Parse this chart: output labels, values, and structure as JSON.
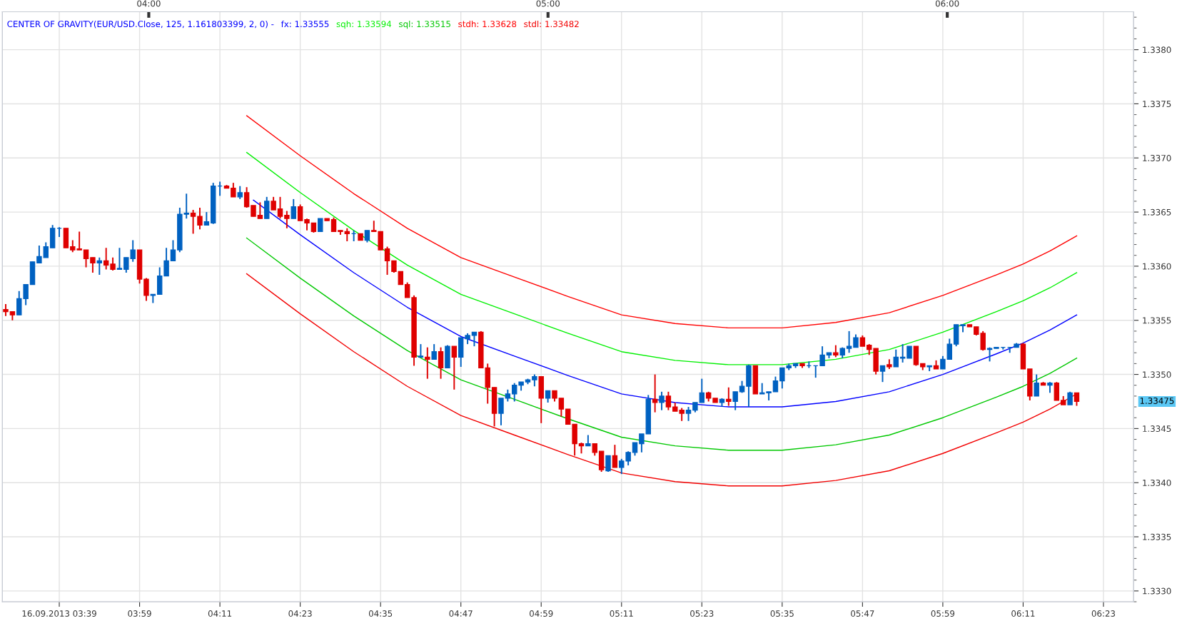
{
  "chart_data": {
    "type": "candlestick",
    "title": "CENTER OF GRAVITY(EUR/USD.Close, 125, 1.161803399, 2, 0) -",
    "categories": [
      null,
      null,
      null,
      null,
      null,
      null,
      null,
      null,
      "16.09.2013 03:39",
      null,
      null,
      null,
      null,
      null,
      null,
      null,
      null,
      null,
      null,
      null,
      "03:59",
      null,
      null,
      null,
      null,
      null,
      null,
      null,
      null,
      null,
      null,
      null,
      "04:11",
      null,
      null,
      null,
      null,
      null,
      null,
      null,
      null,
      null,
      null,
      null,
      "04:23",
      null,
      null,
      null,
      null,
      null,
      null,
      null,
      null,
      null,
      null,
      null,
      "04:35",
      null,
      null,
      null,
      null,
      null,
      null,
      null,
      null,
      null,
      null,
      null,
      "04:47",
      null,
      null,
      null,
      null,
      null,
      null,
      null,
      null,
      null,
      null,
      null,
      "04:59",
      null,
      null,
      null,
      null,
      null,
      null,
      null,
      null,
      null,
      null,
      null,
      "05:11",
      null,
      null,
      null,
      null,
      null,
      null,
      null,
      null,
      null,
      null,
      null,
      "05:23",
      null,
      null,
      null,
      null,
      null,
      null,
      null,
      null,
      null,
      null,
      null,
      "05:35",
      null,
      null,
      null,
      null,
      null,
      null,
      null,
      null,
      null,
      null,
      null,
      "05:47",
      null,
      null,
      null,
      null,
      null,
      null,
      null,
      null,
      null,
      null,
      null,
      "05:59",
      null,
      null,
      null,
      null,
      null,
      null,
      null,
      null,
      null,
      null,
      null,
      "06:11",
      null,
      null,
      null,
      null,
      null,
      null,
      null,
      null,
      null,
      null,
      null,
      "06:23",
      null,
      null,
      null,
      null
    ],
    "ohlc": [
      [
        1.3356,
        1.33565,
        1.33554,
        1.33558
      ],
      [
        1.33558,
        1.33558,
        1.3355,
        1.33555
      ],
      [
        1.33555,
        1.33577,
        1.33555,
        1.3357
      ],
      [
        1.3357,
        1.33583,
        1.33564,
        1.33583
      ],
      [
        1.33583,
        1.33604,
        1.33583,
        1.33604
      ],
      [
        1.33603,
        1.33619,
        1.33603,
        1.33609
      ],
      [
        1.33608,
        1.33622,
        1.33608,
        1.33618
      ],
      [
        1.33617,
        1.33638,
        1.33617,
        1.33635
      ],
      [
        1.33635,
        1.33636,
        1.33627,
        1.33635
      ],
      [
        1.33635,
        1.33635,
        1.33617,
        1.33617
      ],
      [
        1.33618,
        1.33624,
        1.33613,
        1.33615
      ],
      [
        1.33616,
        1.33632,
        1.33615,
        1.33615
      ],
      [
        1.33615,
        1.33615,
        1.33599,
        1.33607
      ],
      [
        1.33608,
        1.33608,
        1.33594,
        1.33603
      ],
      [
        1.33603,
        1.33608,
        1.33592,
        1.33605
      ],
      [
        1.33605,
        1.33617,
        1.33597,
        1.33601
      ],
      [
        1.33602,
        1.33608,
        1.33596,
        1.33597
      ],
      [
        1.33597,
        1.33617,
        1.33597,
        1.33598
      ],
      [
        1.33597,
        1.33608,
        1.33594,
        1.33608
      ],
      [
        1.33607,
        1.33624,
        1.33604,
        1.33615
      ],
      [
        1.33615,
        1.33615,
        1.33584,
        1.33588
      ],
      [
        1.33588,
        1.33589,
        1.33568,
        1.33573
      ],
      [
        1.33573,
        1.33574,
        1.33566,
        1.33574
      ],
      [
        1.33574,
        1.33599,
        1.33574,
        1.33591
      ],
      [
        1.33591,
        1.33617,
        1.33591,
        1.33605
      ],
      [
        1.33605,
        1.33624,
        1.33605,
        1.33615
      ],
      [
        1.33615,
        1.33654,
        1.33613,
        1.33648
      ],
      [
        1.33648,
        1.33667,
        1.33644,
        1.33649
      ],
      [
        1.33649,
        1.33652,
        1.3363,
        1.33646
      ],
      [
        1.33646,
        1.33654,
        1.33634,
        1.33638
      ],
      [
        1.33638,
        1.3365,
        1.33638,
        1.33641
      ],
      [
        1.3364,
        1.33677,
        1.33639,
        1.33674
      ],
      [
        1.33674,
        1.33678,
        1.33665,
        1.33674
      ],
      [
        1.33674,
        1.33675,
        1.33672,
        1.33672
      ],
      [
        1.33672,
        1.33677,
        1.33664,
        1.33664
      ],
      [
        1.33664,
        1.33674,
        1.33662,
        1.33668
      ],
      [
        1.33668,
        1.33673,
        1.33654,
        1.33655
      ],
      [
        1.33656,
        1.33656,
        1.33646,
        1.33646
      ],
      [
        1.33647,
        1.33659,
        1.33644,
        1.33644
      ],
      [
        1.33644,
        1.33664,
        1.33644,
        1.3366
      ],
      [
        1.3366,
        1.33664,
        1.33652,
        1.33652
      ],
      [
        1.33653,
        1.33664,
        1.33644,
        1.33646
      ],
      [
        1.33647,
        1.33651,
        1.33635,
        1.33644
      ],
      [
        1.33644,
        1.33662,
        1.33644,
        1.33655
      ],
      [
        1.33655,
        1.33657,
        1.33642,
        1.33642
      ],
      [
        1.33643,
        1.33644,
        1.33633,
        1.3364
      ],
      [
        1.3364,
        1.3364,
        1.33631,
        1.33632
      ],
      [
        1.33632,
        1.33644,
        1.33632,
        1.33644
      ],
      [
        1.33644,
        1.33644,
        1.33642,
        1.33642
      ],
      [
        1.33643,
        1.33645,
        1.33632,
        1.33632
      ],
      [
        1.33633,
        1.33633,
        1.33629,
        1.33632
      ],
      [
        1.33632,
        1.33635,
        1.33623,
        1.3363
      ],
      [
        1.3363,
        1.33633,
        1.33623,
        1.3363
      ],
      [
        1.3363,
        1.3363,
        1.33624,
        1.33624
      ],
      [
        1.33624,
        1.33633,
        1.33622,
        1.33633
      ],
      [
        1.33633,
        1.33642,
        1.33632,
        1.33632
      ],
      [
        1.33632,
        1.33632,
        1.33615,
        1.33615
      ],
      [
        1.33616,
        1.33618,
        1.33592,
        1.33605
      ],
      [
        1.33605,
        1.33605,
        1.33594,
        1.33595
      ],
      [
        1.33595,
        1.33595,
        1.33583,
        1.33583
      ],
      [
        1.33583,
        1.33585,
        1.33571,
        1.33571
      ],
      [
        1.33571,
        1.33573,
        1.33508,
        1.33516
      ],
      [
        1.33516,
        1.33528,
        1.33516,
        1.33517
      ],
      [
        1.33516,
        1.33525,
        1.33496,
        1.33514
      ],
      [
        1.33514,
        1.33528,
        1.33514,
        1.33521
      ],
      [
        1.33521,
        1.33525,
        1.33496,
        1.33506
      ],
      [
        1.33506,
        1.33527,
        1.33506,
        1.33526
      ],
      [
        1.33526,
        1.33526,
        1.33486,
        1.33516
      ],
      [
        1.33516,
        1.33534,
        1.33507,
        1.33534
      ],
      [
        1.33533,
        1.33538,
        1.33528,
        1.33536
      ],
      [
        1.33536,
        1.33539,
        1.33526,
        1.33539
      ],
      [
        1.33539,
        1.3354,
        1.33506,
        1.33506
      ],
      [
        1.33506,
        1.3351,
        1.33473,
        1.33488
      ],
      [
        1.33488,
        1.33488,
        1.33452,
        1.33464
      ],
      [
        1.33464,
        1.33478,
        1.33453,
        1.33478
      ],
      [
        1.33478,
        1.33486,
        1.33475,
        1.33482
      ],
      [
        1.33482,
        1.33492,
        1.33475,
        1.3349
      ],
      [
        1.3349,
        1.33493,
        1.33485,
        1.33493
      ],
      [
        1.33493,
        1.33496,
        1.33491,
        1.33495
      ],
      [
        1.33495,
        1.335,
        1.33489,
        1.33498
      ],
      [
        1.33498,
        1.33498,
        1.33455,
        1.33478
      ],
      [
        1.33478,
        1.33485,
        1.33474,
        1.33485
      ],
      [
        1.33485,
        1.33485,
        1.33475,
        1.33478
      ],
      [
        1.33478,
        1.33478,
        1.33461,
        1.33468
      ],
      [
        1.33468,
        1.33468,
        1.33454,
        1.33454
      ],
      [
        1.33454,
        1.33454,
        1.33425,
        1.33436
      ],
      [
        1.33436,
        1.33437,
        1.33427,
        1.33434
      ],
      [
        1.33434,
        1.33444,
        1.33434,
        1.33436
      ],
      [
        1.33436,
        1.33436,
        1.33425,
        1.33428
      ],
      [
        1.33429,
        1.33429,
        1.3341,
        1.33412
      ],
      [
        1.33411,
        1.33425,
        1.3341,
        1.33425
      ],
      [
        1.33425,
        1.33435,
        1.33414,
        1.33414
      ],
      [
        1.33414,
        1.33422,
        1.33408,
        1.3342
      ],
      [
        1.3342,
        1.33429,
        1.33416,
        1.33428
      ],
      [
        1.33428,
        1.33437,
        1.33425,
        1.33437
      ],
      [
        1.33436,
        1.33445,
        1.33428,
        1.33445
      ],
      [
        1.33445,
        1.33481,
        1.33445,
        1.33477
      ],
      [
        1.33477,
        1.335,
        1.33465,
        1.33474
      ],
      [
        1.33474,
        1.33484,
        1.33467,
        1.3348
      ],
      [
        1.3348,
        1.33484,
        1.33467,
        1.3347
      ],
      [
        1.3347,
        1.33474,
        1.33466,
        1.33466
      ],
      [
        1.33467,
        1.33469,
        1.33457,
        1.33464
      ],
      [
        1.33464,
        1.3347,
        1.33457,
        1.33467
      ],
      [
        1.33467,
        1.33474,
        1.33465,
        1.33474
      ],
      [
        1.33474,
        1.33496,
        1.33474,
        1.33483
      ],
      [
        1.33483,
        1.33484,
        1.33475,
        1.33478
      ],
      [
        1.33478,
        1.33478,
        1.33474,
        1.33474
      ],
      [
        1.33474,
        1.33478,
        1.3347,
        1.33477
      ],
      [
        1.33477,
        1.33488,
        1.33471,
        1.33475
      ],
      [
        1.33475,
        1.33484,
        1.33467,
        1.33484
      ],
      [
        1.33484,
        1.33494,
        1.33483,
        1.33489
      ],
      [
        1.33489,
        1.33509,
        1.3347,
        1.33508
      ],
      [
        1.33508,
        1.33508,
        1.33482,
        1.33482
      ],
      [
        1.33482,
        1.33492,
        1.33482,
        1.33483
      ],
      [
        1.33483,
        1.33484,
        1.33476,
        1.33484
      ],
      [
        1.33484,
        1.33498,
        1.33484,
        1.33494
      ],
      [
        1.33494,
        1.33506,
        1.33487,
        1.33506
      ],
      [
        1.33506,
        1.3351,
        1.33504,
        1.33508
      ],
      [
        1.33508,
        1.3351,
        1.33506,
        1.3351
      ],
      [
        1.3351,
        1.3351,
        1.33506,
        1.33508
      ],
      [
        1.33508,
        1.33512,
        1.33506,
        1.33508
      ],
      [
        1.33508,
        1.33508,
        1.33497,
        1.33508
      ],
      [
        1.33508,
        1.33526,
        1.33508,
        1.33518
      ],
      [
        1.33518,
        1.3352,
        1.33515,
        1.3352
      ],
      [
        1.3352,
        1.33527,
        1.33516,
        1.33518
      ],
      [
        1.33518,
        1.33525,
        1.33515,
        1.33524
      ],
      [
        1.33524,
        1.3354,
        1.3352,
        1.33526
      ],
      [
        1.33525,
        1.33537,
        1.33525,
        1.33534
      ],
      [
        1.33534,
        1.33536,
        1.33526,
        1.33526
      ],
      [
        1.33527,
        1.33528,
        1.33518,
        1.33523
      ],
      [
        1.33524,
        1.33524,
        1.335,
        1.33503
      ],
      [
        1.33503,
        1.33508,
        1.33493,
        1.33508
      ],
      [
        1.33509,
        1.33514,
        1.33505,
        1.33507
      ],
      [
        1.33507,
        1.33523,
        1.33507,
        1.33516
      ],
      [
        1.33515,
        1.33528,
        1.33511,
        1.33516
      ],
      [
        1.33515,
        1.33526,
        1.33515,
        1.33526
      ],
      [
        1.33526,
        1.33526,
        1.33508,
        1.33509
      ],
      [
        1.3351,
        1.3351,
        1.33504,
        1.33507
      ],
      [
        1.33507,
        1.33508,
        1.33503,
        1.33508
      ],
      [
        1.33508,
        1.33513,
        1.33505,
        1.33505
      ],
      [
        1.33505,
        1.33517,
        1.33505,
        1.33514
      ],
      [
        1.33514,
        1.33533,
        1.33514,
        1.33528
      ],
      [
        1.33528,
        1.33546,
        1.33526,
        1.33546
      ],
      [
        1.33545,
        1.33546,
        1.33539,
        1.33546
      ],
      [
        1.33546,
        1.33546,
        1.33544,
        1.33544
      ],
      [
        1.33544,
        1.33544,
        1.33536,
        1.33537
      ],
      [
        1.33538,
        1.3354,
        1.33522,
        1.33523
      ],
      [
        1.33523,
        1.33525,
        1.33512,
        1.33524
      ],
      [
        1.33524,
        1.33525,
        1.33524,
        1.33525
      ],
      [
        1.33525,
        1.33525,
        1.33523,
        1.33525
      ],
      [
        1.33525,
        1.33525,
        1.3352,
        1.33525
      ],
      [
        1.33525,
        1.33529,
        1.33525,
        1.33528
      ],
      [
        1.33528,
        1.33529,
        1.33505,
        1.33505
      ],
      [
        1.33505,
        1.33505,
        1.33476,
        1.3348
      ],
      [
        1.3348,
        1.335,
        1.3348,
        1.33492
      ],
      [
        1.33492,
        1.33493,
        1.3349,
        1.3349
      ],
      [
        1.3349,
        1.33493,
        1.33483,
        1.33492
      ],
      [
        1.33492,
        1.33493,
        1.33476,
        1.33476
      ],
      [
        1.33476,
        1.3348,
        1.33472,
        1.33472
      ],
      [
        1.33472,
        1.33484,
        1.33472,
        1.33483
      ],
      [
        1.33483,
        1.33483,
        1.33471,
        1.33475
      ],
      null,
      null,
      null,
      null,
      null,
      null,
      null,
      null
    ],
    "colors": [
      "#df0000",
      "#df0000",
      "#0061c1",
      "#0061c1",
      "#0061c1",
      "#0061c1",
      "#0061c1",
      "#0061c1",
      "#0061c1",
      "#df0000",
      "#df0000",
      "#df0000",
      "#df0000",
      "#df0000",
      "#0061c1",
      "#df0000",
      "#df0000",
      "#0061c1",
      "#0061c1",
      "#0061c1",
      "#df0000",
      "#df0000",
      "#0061c1",
      "#0061c1",
      "#0061c1",
      "#0061c1",
      "#0061c1",
      "#0061c1",
      "#df0000",
      "#df0000",
      "#0061c1",
      "#0061c1",
      "#0061c1",
      "#df0000",
      "#df0000",
      "#0061c1",
      "#df0000",
      "#df0000",
      "#df0000",
      "#0061c1",
      "#df0000",
      "#df0000",
      "#df0000",
      "#0061c1",
      "#df0000",
      "#df0000",
      "#df0000",
      "#0061c1",
      "#df0000",
      "#df0000",
      "#df0000",
      "#df0000",
      "#0061c1",
      "#df0000",
      "#0061c1",
      "#df0000",
      "#df0000",
      "#df0000",
      "#df0000",
      "#df0000",
      "#df0000",
      "#df0000",
      "#0061c1",
      "#df0000",
      "#0061c1",
      "#df0000",
      "#0061c1",
      "#df0000",
      "#0061c1",
      "#0061c1",
      "#0061c1",
      "#df0000",
      "#df0000",
      "#df0000",
      "#0061c1",
      "#0061c1",
      "#0061c1",
      "#0061c1",
      "#0061c1",
      "#0061c1",
      "#df0000",
      "#0061c1",
      "#df0000",
      "#df0000",
      "#df0000",
      "#df0000",
      "#df0000",
      "#0061c1",
      "#df0000",
      "#df0000",
      "#0061c1",
      "#df0000",
      "#0061c1",
      "#0061c1",
      "#0061c1",
      "#0061c1",
      "#0061c1",
      "#df0000",
      "#0061c1",
      "#df0000",
      "#df0000",
      "#df0000",
      "#0061c1",
      "#0061c1",
      "#0061c1",
      "#df0000",
      "#df0000",
      "#0061c1",
      "#df0000",
      "#0061c1",
      "#0061c1",
      "#0061c1",
      "#df0000",
      "#0061c1",
      "#0061c1",
      "#0061c1",
      "#0061c1",
      "#0061c1",
      "#0061c1",
      "#df0000",
      "#0061c1",
      "#0061c1",
      "#0061c1",
      "#0061c1",
      "#df0000",
      "#0061c1",
      "#0061c1",
      "#0061c1",
      "#df0000",
      "#df0000",
      "#df0000",
      "#0061c1",
      "#df0000",
      "#0061c1",
      "#0061c1",
      "#0061c1",
      "#df0000",
      "#df0000",
      "#0061c1",
      "#df0000",
      "#0061c1",
      "#0061c1",
      "#0061c1",
      "#0061c1",
      "#df0000",
      "#df0000",
      "#df0000",
      "#0061c1",
      "#0061c1",
      "#0061c1",
      "#0061c1",
      "#0061c1",
      "#df0000",
      "#df0000",
      "#0061c1",
      "#df0000",
      "#0061c1",
      "#df0000",
      "#df0000",
      "#0061c1",
      "#df0000",
      null,
      null,
      null,
      null,
      null,
      null,
      null,
      null
    ],
    "series": [
      {
        "type": "line",
        "name": "fx: 1.33555",
        "color": "#0000ff",
        "values": [
          null,
          null,
          null,
          null,
          null,
          null,
          null,
          null,
          null,
          null,
          null,
          null,
          null,
          null,
          null,
          null,
          null,
          null,
          null,
          null,
          null,
          null,
          null,
          null,
          null,
          null,
          null,
          null,
          null,
          null,
          null,
          null,
          null,
          null,
          null,
          null,
          null,
          1.33661,
          null,
          null,
          null,
          null,
          null,
          null,
          1.33629,
          null,
          null,
          null,
          null,
          null,
          null,
          null,
          1.33594,
          null,
          null,
          null,
          null,
          null,
          null,
          null,
          1.33562,
          null,
          null,
          null,
          null,
          null,
          null,
          null,
          1.33535,
          null,
          null,
          null,
          null,
          null,
          null,
          null,
          1.33517,
          null,
          null,
          null,
          null,
          null,
          null,
          null,
          1.33499,
          null,
          null,
          null,
          null,
          null,
          null,
          null,
          1.33482,
          null,
          null,
          null,
          null,
          null,
          null,
          null,
          1.33474,
          null,
          null,
          null,
          null,
          null,
          null,
          null,
          1.3347,
          null,
          null,
          null,
          null,
          null,
          null,
          null,
          1.3347,
          null,
          null,
          null,
          null,
          null,
          null,
          null,
          1.33475,
          null,
          null,
          null,
          null,
          null,
          null,
          null,
          1.33484,
          null,
          null,
          null,
          null,
          null,
          null,
          null,
          1.335,
          null,
          null,
          null,
          null,
          null,
          null,
          null,
          1.33519,
          null,
          null,
          null,
          1.33529,
          null,
          null,
          null,
          1.33541,
          null,
          null,
          null,
          1.33555,
          null,
          null,
          null,
          null,
          null,
          null,
          null,
          null
        ]
      },
      {
        "type": "line",
        "name": "sqh: 1.33594",
        "color": "#00f000",
        "values": [
          null,
          null,
          null,
          null,
          null,
          null,
          null,
          null,
          null,
          null,
          null,
          null,
          null,
          null,
          null,
          null,
          null,
          null,
          null,
          null,
          null,
          null,
          null,
          null,
          null,
          null,
          null,
          null,
          null,
          null,
          null,
          null,
          null,
          null,
          null,
          null,
          1.33705,
          null,
          null,
          null,
          null,
          null,
          null,
          null,
          1.33668,
          null,
          null,
          null,
          null,
          null,
          null,
          null,
          1.33633,
          null,
          null,
          null,
          null,
          null,
          null,
          null,
          1.33601,
          null,
          null,
          null,
          null,
          null,
          null,
          null,
          1.33574,
          null,
          null,
          null,
          null,
          null,
          null,
          null,
          1.33556,
          null,
          null,
          null,
          null,
          null,
          null,
          null,
          1.33538,
          null,
          null,
          null,
          null,
          null,
          null,
          null,
          1.33521,
          null,
          null,
          null,
          null,
          null,
          null,
          null,
          1.33513,
          null,
          null,
          null,
          null,
          null,
          null,
          null,
          1.33509,
          null,
          null,
          null,
          null,
          null,
          null,
          null,
          1.33509,
          null,
          null,
          null,
          null,
          null,
          null,
          null,
          1.33514,
          null,
          null,
          null,
          null,
          null,
          null,
          null,
          1.33523,
          null,
          null,
          null,
          null,
          null,
          null,
          null,
          1.33539,
          null,
          null,
          null,
          null,
          null,
          null,
          null,
          1.33558,
          null,
          null,
          null,
          1.33568,
          null,
          null,
          null,
          1.3358,
          null,
          null,
          null,
          1.33594,
          null,
          null,
          null,
          null,
          null,
          null,
          null,
          null
        ]
      },
      {
        "type": "line",
        "name": "sql: 1.33515",
        "color": "#00c800",
        "values": [
          null,
          null,
          null,
          null,
          null,
          null,
          null,
          null,
          null,
          null,
          null,
          null,
          null,
          null,
          null,
          null,
          null,
          null,
          null,
          null,
          null,
          null,
          null,
          null,
          null,
          null,
          null,
          null,
          null,
          null,
          null,
          null,
          null,
          null,
          null,
          null,
          1.33626,
          null,
          null,
          null,
          null,
          null,
          null,
          null,
          1.33589,
          null,
          null,
          null,
          null,
          null,
          null,
          null,
          1.33554,
          null,
          null,
          null,
          null,
          null,
          null,
          null,
          1.33522,
          null,
          null,
          null,
          null,
          null,
          null,
          null,
          1.33495,
          null,
          null,
          null,
          null,
          null,
          null,
          null,
          1.33477,
          null,
          null,
          null,
          null,
          null,
          null,
          null,
          1.33459,
          null,
          null,
          null,
          null,
          null,
          null,
          null,
          1.33442,
          null,
          null,
          null,
          null,
          null,
          null,
          null,
          1.33434,
          null,
          null,
          null,
          null,
          null,
          null,
          null,
          1.3343,
          null,
          null,
          null,
          null,
          null,
          null,
          null,
          1.3343,
          null,
          null,
          null,
          null,
          null,
          null,
          null,
          1.33435,
          null,
          null,
          null,
          null,
          null,
          null,
          null,
          1.33444,
          null,
          null,
          null,
          null,
          null,
          null,
          null,
          1.3346,
          null,
          null,
          null,
          null,
          null,
          null,
          null,
          1.33479,
          null,
          null,
          null,
          1.33489,
          null,
          null,
          null,
          1.33501,
          null,
          null,
          null,
          1.33515,
          null,
          null,
          null,
          null,
          null,
          null,
          null,
          null
        ]
      },
      {
        "type": "line",
        "name": "stdh: 1.33628",
        "color": "#ff0000",
        "values": [
          null,
          null,
          null,
          null,
          null,
          null,
          null,
          null,
          null,
          null,
          null,
          null,
          null,
          null,
          null,
          null,
          null,
          null,
          null,
          null,
          null,
          null,
          null,
          null,
          null,
          null,
          null,
          null,
          null,
          null,
          null,
          null,
          null,
          null,
          null,
          null,
          1.33739,
          null,
          null,
          null,
          null,
          null,
          null,
          null,
          1.33702,
          null,
          null,
          null,
          null,
          null,
          null,
          null,
          1.33667,
          null,
          null,
          null,
          null,
          null,
          null,
          null,
          1.33635,
          null,
          null,
          null,
          null,
          null,
          null,
          null,
          1.33608,
          null,
          null,
          null,
          null,
          null,
          null,
          null,
          1.3359,
          null,
          null,
          null,
          null,
          null,
          null,
          null,
          1.33572,
          null,
          null,
          null,
          null,
          null,
          null,
          null,
          1.33555,
          null,
          null,
          null,
          null,
          null,
          null,
          null,
          1.33547,
          null,
          null,
          null,
          null,
          null,
          null,
          null,
          1.33543,
          null,
          null,
          null,
          null,
          null,
          null,
          null,
          1.33543,
          null,
          null,
          null,
          null,
          null,
          null,
          null,
          1.33548,
          null,
          null,
          null,
          null,
          null,
          null,
          null,
          1.33557,
          null,
          null,
          null,
          null,
          null,
          null,
          null,
          1.33573,
          null,
          null,
          null,
          null,
          null,
          null,
          null,
          1.33592,
          null,
          null,
          null,
          1.33602,
          null,
          null,
          null,
          1.33614,
          null,
          null,
          null,
          1.33628,
          null,
          null,
          null,
          null,
          null,
          null,
          null,
          null
        ]
      },
      {
        "type": "line",
        "name": "stdl: 1.33482",
        "color": "#f20000",
        "values": [
          null,
          null,
          null,
          null,
          null,
          null,
          null,
          null,
          null,
          null,
          null,
          null,
          null,
          null,
          null,
          null,
          null,
          null,
          null,
          null,
          null,
          null,
          null,
          null,
          null,
          null,
          null,
          null,
          null,
          null,
          null,
          null,
          null,
          null,
          null,
          null,
          1.33593,
          null,
          null,
          null,
          null,
          null,
          null,
          null,
          1.33556,
          null,
          null,
          null,
          null,
          null,
          null,
          null,
          1.33521,
          null,
          null,
          null,
          null,
          null,
          null,
          null,
          1.33489,
          null,
          null,
          null,
          null,
          null,
          null,
          null,
          1.33462,
          null,
          null,
          null,
          null,
          null,
          null,
          null,
          1.33444,
          null,
          null,
          null,
          null,
          null,
          null,
          null,
          1.33426,
          null,
          null,
          null,
          null,
          null,
          null,
          null,
          1.33409,
          null,
          null,
          null,
          null,
          null,
          null,
          null,
          1.33401,
          null,
          null,
          null,
          null,
          null,
          null,
          null,
          1.33397,
          null,
          null,
          null,
          null,
          null,
          null,
          null,
          1.33397,
          null,
          null,
          null,
          null,
          null,
          null,
          null,
          1.33402,
          null,
          null,
          null,
          null,
          null,
          null,
          null,
          1.33411,
          null,
          null,
          null,
          null,
          null,
          null,
          null,
          1.33427,
          null,
          null,
          null,
          null,
          null,
          null,
          null,
          1.33446,
          null,
          null,
          null,
          1.33456,
          null,
          null,
          null,
          1.33468,
          null,
          null,
          null,
          1.33482,
          null,
          null,
          null,
          null,
          null,
          null,
          null,
          null
        ]
      }
    ],
    "x2lim": [
      "2013-09-16T03:38",
      "2013-09-16T06:28"
    ],
    "x2ticks": [
      {
        "value": "2013-09-16T04:00",
        "label": "04:00"
      },
      {
        "value": "2013-09-16T05:00",
        "label": "05:00"
      },
      {
        "value": "2013-09-16T06:00",
        "label": "06:00"
      }
    ],
    "ylim": [
      1.3329,
      1.33835
    ],
    "yticks": [
      {
        "value": 1.333,
        "label": "1.3330"
      },
      {
        "value": 1.3335,
        "label": "1.3335"
      },
      {
        "value": 1.334,
        "label": "1.3340"
      },
      {
        "value": 1.3345,
        "label": "1.3345"
      },
      {
        "value": 1.335,
        "label": "1.3350"
      },
      {
        "value": 1.3355,
        "label": "1.3355"
      },
      {
        "value": 1.336,
        "label": "1.3360"
      },
      {
        "value": 1.3365,
        "label": "1.3365"
      },
      {
        "value": 1.337,
        "label": "1.3370"
      },
      {
        "value": 1.3375,
        "label": "1.3375"
      },
      {
        "value": 1.338,
        "label": "1.3380"
      }
    ],
    "annotations": [
      "1.33475"
    ],
    "grid": true,
    "legend": "top left"
  }
}
